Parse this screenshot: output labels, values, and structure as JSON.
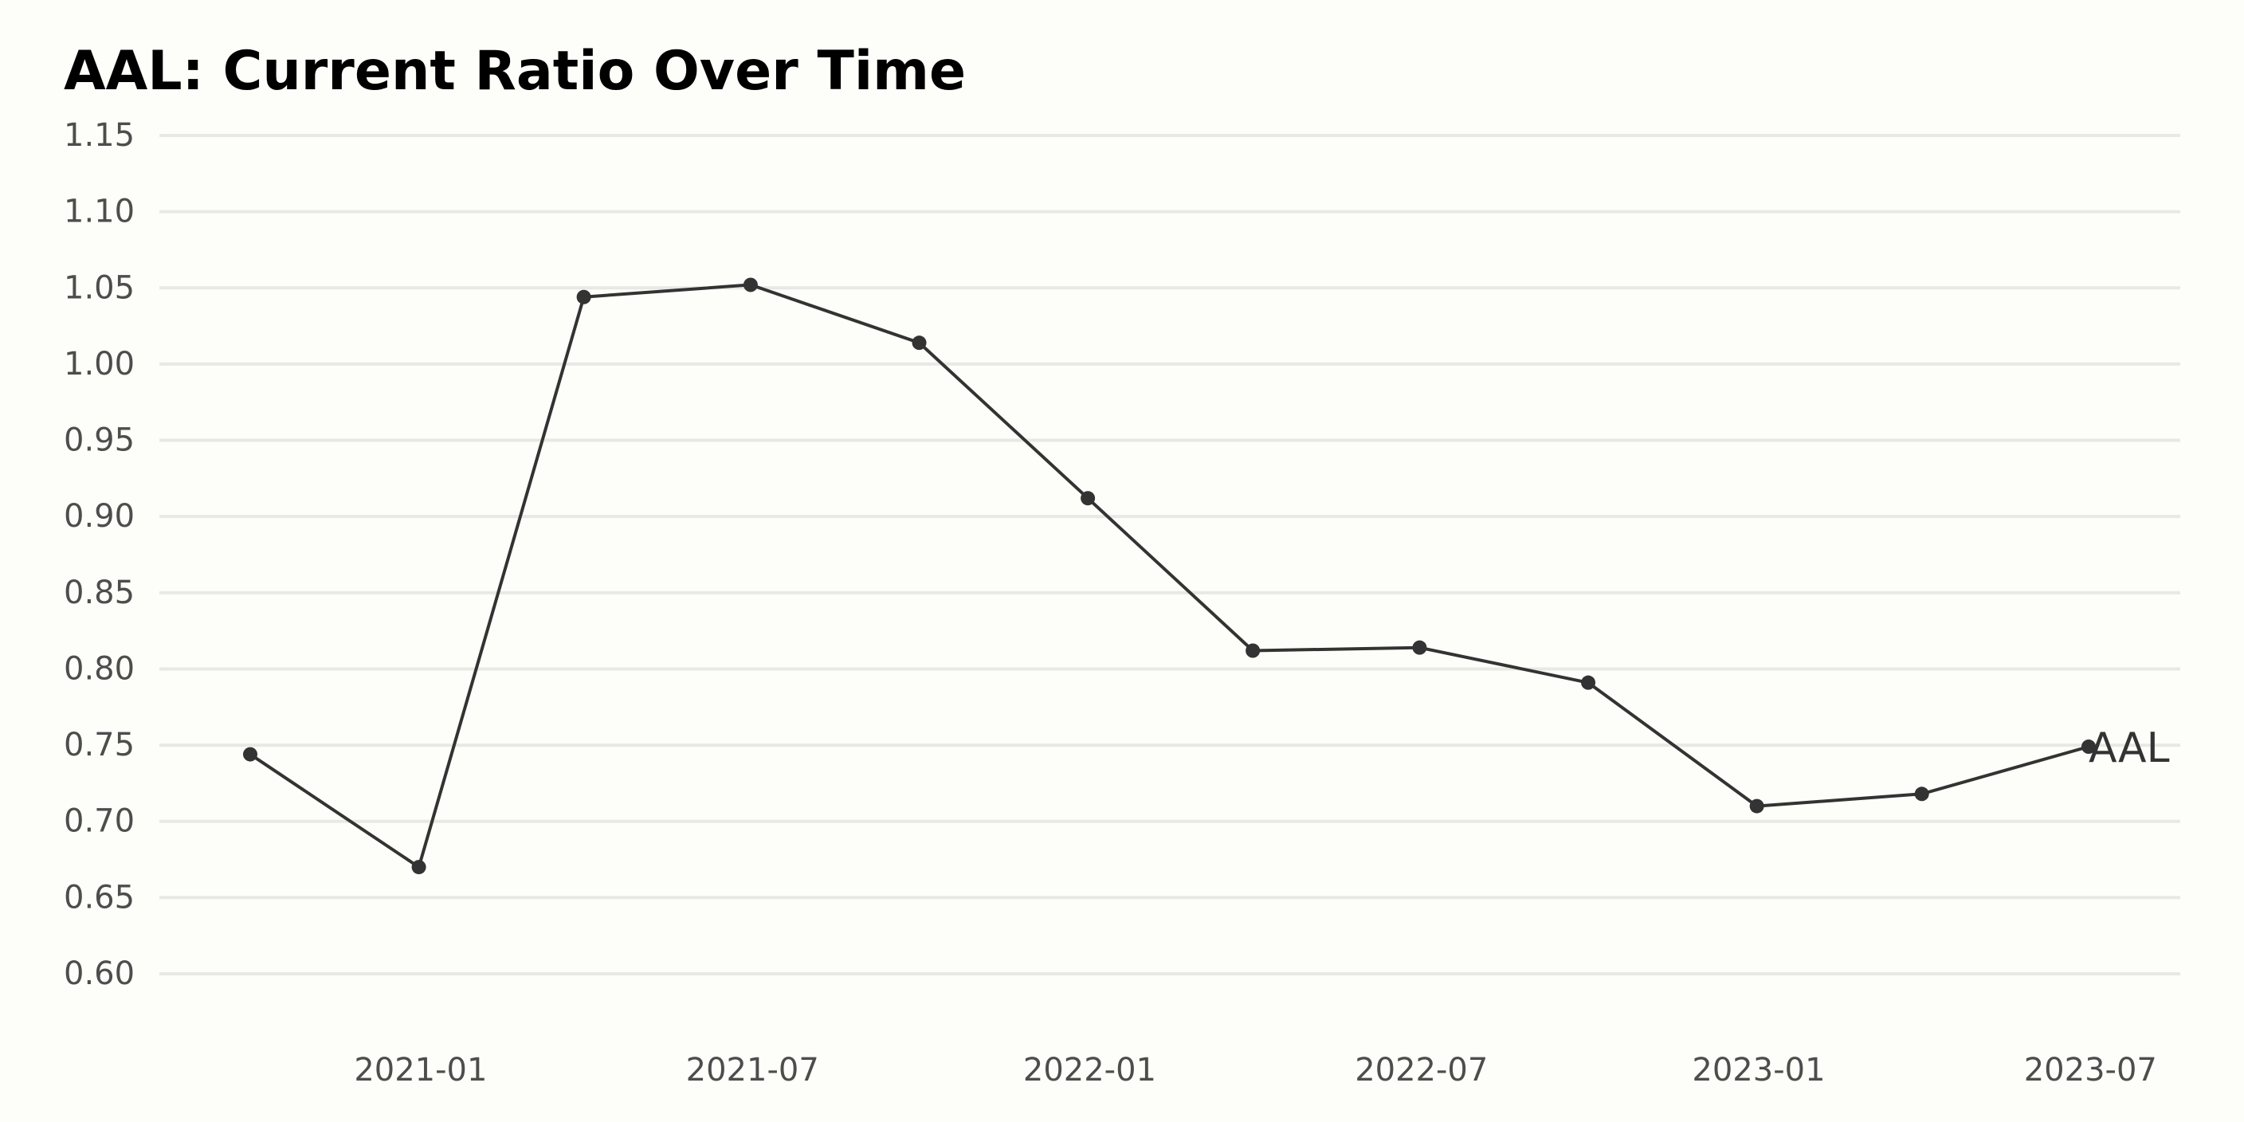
{
  "colors": {
    "background": "#fdfdf9",
    "line": "#333333",
    "grid": "#e8e8e5",
    "tick_text": "#4d4d4d"
  },
  "chart_data": {
    "type": "line",
    "title": "AAL: Current Ratio Over Time",
    "xlabel": "",
    "ylabel": "",
    "ylim": [
      0.6,
      1.15
    ],
    "y_ticks": [
      "0.60",
      "0.65",
      "0.70",
      "0.75",
      "0.80",
      "0.85",
      "0.90",
      "0.95",
      "1.00",
      "1.05",
      "1.10",
      "1.15"
    ],
    "x_ticks": [
      "2021-01",
      "2021-07",
      "2022-01",
      "2022-07",
      "2023-01",
      "2023-07"
    ],
    "grid": "horizontal",
    "series": [
      {
        "name": "AAL",
        "label_position": "end-of-line",
        "points": [
          {
            "date": "2020-09-30",
            "value": 0.744
          },
          {
            "date": "2020-12-31",
            "value": 0.67
          },
          {
            "date": "2021-03-31",
            "value": 1.044
          },
          {
            "date": "2021-06-30",
            "value": 1.052
          },
          {
            "date": "2021-09-30",
            "value": 1.014
          },
          {
            "date": "2021-12-31",
            "value": 0.912
          },
          {
            "date": "2022-03-31",
            "value": 0.812
          },
          {
            "date": "2022-06-30",
            "value": 0.814
          },
          {
            "date": "2022-09-30",
            "value": 0.791
          },
          {
            "date": "2022-12-31",
            "value": 0.71
          },
          {
            "date": "2023-03-31",
            "value": 0.718
          },
          {
            "date": "2023-06-30",
            "value": 0.749
          }
        ]
      }
    ]
  }
}
